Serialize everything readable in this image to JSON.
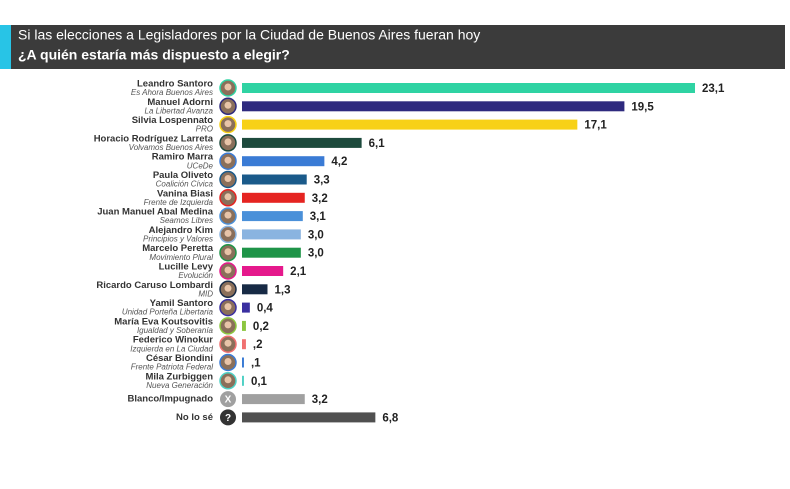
{
  "chart_data": {
    "type": "hbar",
    "title": "Si las elecciones a Legisladores por la Ciudad de Buenos Aires fueran hoy",
    "subtitle": "¿A quién estaría más dispuesto a elegir?",
    "categories": [
      "Leandro Santoro",
      "Manuel Adorni",
      "Silvia Lospennato",
      "Horacio Rodríguez Larreta",
      "Ramiro Marra",
      "Paula Oliveto",
      "Vanina Biasi",
      "Juan Manuel Abal Medina",
      "Alejandro Kim",
      "Marcelo Peretta",
      "Lucille Levy",
      "Ricardo Caruso Lombardi",
      "Yamil Santoro",
      "María Eva Koutsovitis",
      "Federico Winokur",
      "César Biondini",
      "Mila Zurbiggen",
      "Blanco/Impugnado",
      "No lo sé"
    ],
    "parties": [
      "Es Ahora Buenos Aires",
      "La Libertad Avanza",
      "PRO",
      "Volvamos Buenos Aires",
      "UCeDe",
      "Coalición Cívica",
      "Frente de Izquierda",
      "Seamos Libres",
      "Principios y Valores",
      "Movimiento Plural",
      "Evolución",
      "MID",
      "Unidad Porteña Libertaria",
      "Igualdad y Soberanía",
      "Izquierda en La Ciudad",
      "Frente Patriota Federal",
      "Nueva Generación",
      null,
      null
    ],
    "icon_labels": {
      "17": "X",
      "18": "?"
    },
    "values": [
      23.1,
      19.5,
      17.1,
      6.1,
      4.2,
      3.3,
      3.2,
      3.1,
      3.0,
      3.0,
      2.1,
      1.3,
      0.4,
      0.2,
      0.2,
      0.1,
      0.1,
      3.2,
      6.8
    ],
    "value_labels": [
      "23,1",
      "19,5",
      "17,1",
      "6,1",
      "4,2",
      "3,3",
      "3,2",
      "3,1",
      "3,0",
      "3,0",
      "2,1",
      "1,3",
      "0,4",
      "0,2",
      ",2",
      ",1",
      "0,1",
      "3,2",
      "6,8"
    ],
    "colors": [
      "#2fd3a3",
      "#2e2a7e",
      "#f7d117",
      "#1d4a3c",
      "#3a7bd5",
      "#1a5a8a",
      "#e52421",
      "#4a90d9",
      "#8ab4e0",
      "#1e9448",
      "#e5198c",
      "#172a45",
      "#3a2fa0",
      "#8cc63f",
      "#f07070",
      "#3a7bd5",
      "#4fd1c5",
      "#a0a0a0",
      "#505050"
    ]
  }
}
